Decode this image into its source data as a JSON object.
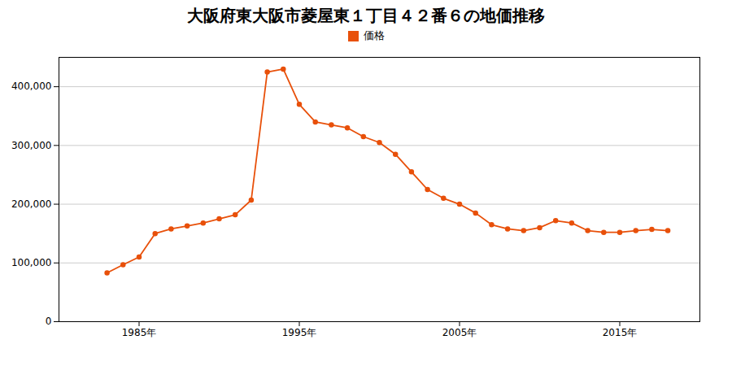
{
  "chart_data": {
    "type": "line",
    "title": "大阪府東大阪市菱屋東１丁目４２番６の地価推移",
    "x": [
      1983,
      1984,
      1985,
      1986,
      1987,
      1988,
      1989,
      1990,
      1991,
      1992,
      1993,
      1994,
      1995,
      1996,
      1997,
      1998,
      1999,
      2000,
      2001,
      2002,
      2003,
      2004,
      2005,
      2006,
      2007,
      2008,
      2009,
      2010,
      2011,
      2012,
      2013,
      2014,
      2015,
      2016,
      2017,
      2018
    ],
    "series": [
      {
        "name": "価格",
        "color": "#E8500A",
        "marker": "circle",
        "values": [
          83000,
          97000,
          110000,
          150000,
          158000,
          163000,
          168000,
          175000,
          182000,
          207000,
          425000,
          430000,
          370000,
          340000,
          335000,
          330000,
          315000,
          305000,
          285000,
          255000,
          225000,
          210000,
          200000,
          185000,
          165000,
          158000,
          155000,
          160000,
          172000,
          168000,
          155000,
          152000,
          152000,
          155000,
          157000,
          155000
        ]
      }
    ],
    "xlim": [
      1980,
      2020
    ],
    "xticks": [
      {
        "value": 1985,
        "label": "1985年"
      },
      {
        "value": 1995,
        "label": "1995年"
      },
      {
        "value": 2005,
        "label": "2005年"
      },
      {
        "value": 2015,
        "label": "2015年"
      }
    ],
    "ylim": [
      0,
      450000
    ],
    "yticks": [
      0,
      {
        "value": 100000,
        "label": "100,000"
      },
      {
        "value": 200000,
        "label": "200,000"
      },
      {
        "value": 300000,
        "label": "300,000"
      },
      {
        "value": 400000,
        "label": "400,000"
      }
    ],
    "grid": "y",
    "legend": "top"
  }
}
